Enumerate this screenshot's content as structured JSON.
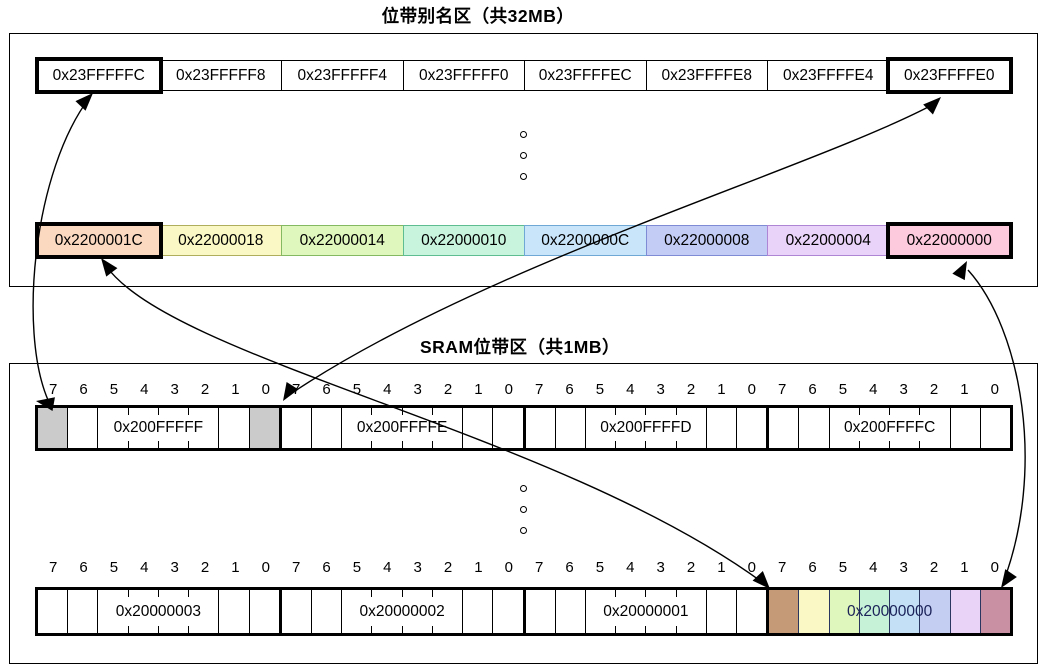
{
  "titles": {
    "alias_region": "位带别名区（共32MB）",
    "sram_region": "SRAM位带区（共1MB）"
  },
  "alias_region": {
    "word_row": [
      {
        "label": "0x23FFFFFC",
        "bold": true,
        "fill": "#FFFFFF"
      },
      {
        "label": "0x23FFFFF8",
        "bold": false,
        "fill": "#FFFFFF"
      },
      {
        "label": "0x23FFFFF4",
        "bold": false,
        "fill": "#FFFFFF"
      },
      {
        "label": "0x23FFFFF0",
        "bold": false,
        "fill": "#FFFFFF"
      },
      {
        "label": "0x23FFFFEC",
        "bold": false,
        "fill": "#FFFFFF"
      },
      {
        "label": "0x23FFFFE8",
        "bold": false,
        "fill": "#FFFFFF"
      },
      {
        "label": "0x23FFFFE4",
        "bold": false,
        "fill": "#FFFFFF"
      },
      {
        "label": "0x23FFFFE0",
        "bold": true,
        "fill": "#FFFFFF"
      }
    ],
    "colored_row": [
      {
        "label": "0x2200001C",
        "bold": true,
        "fill": "#FBD9C0",
        "border": "#C08050"
      },
      {
        "label": "0x22000018",
        "bold": false,
        "fill": "#FAF8C5",
        "border": "#AEAE5C"
      },
      {
        "label": "0x22000014",
        "bold": false,
        "fill": "#DFF7BC",
        "border": "#84B861"
      },
      {
        "label": "0x22000010",
        "bold": false,
        "fill": "#C8F4DE",
        "border": "#5FBD92"
      },
      {
        "label": "0x2200000C",
        "bold": false,
        "fill": "#C8E5FA",
        "border": "#6FA8D4"
      },
      {
        "label": "0x22000008",
        "bold": false,
        "fill": "#C3CCF5",
        "border": "#7F8BD4"
      },
      {
        "label": "0x22000004",
        "bold": false,
        "fill": "#EAD3F8",
        "border": "#AD85D4"
      },
      {
        "label": "0x22000000",
        "bold": true,
        "fill": "#FCC9DD",
        "border": "#D481A4"
      }
    ]
  },
  "sram_region": {
    "bit_labels": [
      "7",
      "6",
      "5",
      "4",
      "3",
      "2",
      "1",
      "0"
    ],
    "row_top": [
      {
        "label": "0x200FFFFF",
        "gray_bits": [
          7,
          0
        ],
        "gray_fill": "#CBCBCB"
      },
      {
        "label": "0x200FFFFE"
      },
      {
        "label": "0x200FFFFD"
      },
      {
        "label": "0x200FFFFC"
      }
    ],
    "row_bottom": [
      {
        "label": "0x20000003"
      },
      {
        "label": "0x20000002"
      },
      {
        "label": "0x20000001"
      },
      {
        "label": "0x20000000",
        "tinted": true,
        "bit_fills": [
          "#C49A77",
          "#FAF8C5",
          "#DFF7BC",
          "#C6F2D8",
          "#C4E0F7",
          "#C4CDF2",
          "#E9D3F7",
          "#C98FA3"
        ]
      }
    ]
  },
  "arrows": [
    {
      "between": [
        "0x23FFFFFC",
        "bit 7 of 0x200FFFFF"
      ],
      "bidirectional": true
    },
    {
      "between": [
        "0x23FFFFE0",
        "bit 0 of 0x200FFFFF"
      ],
      "bidirectional": true
    },
    {
      "between": [
        "0x2200001C",
        "bit 7 of 0x20000000"
      ],
      "bidirectional": true
    },
    {
      "between": [
        "0x22000000",
        "bit 0 of 0x20000000"
      ],
      "bidirectional": true
    }
  ],
  "colors": {
    "line": "#000000",
    "tinted_divider": "#2A3560",
    "gray_bit": "#CBCBCB"
  }
}
